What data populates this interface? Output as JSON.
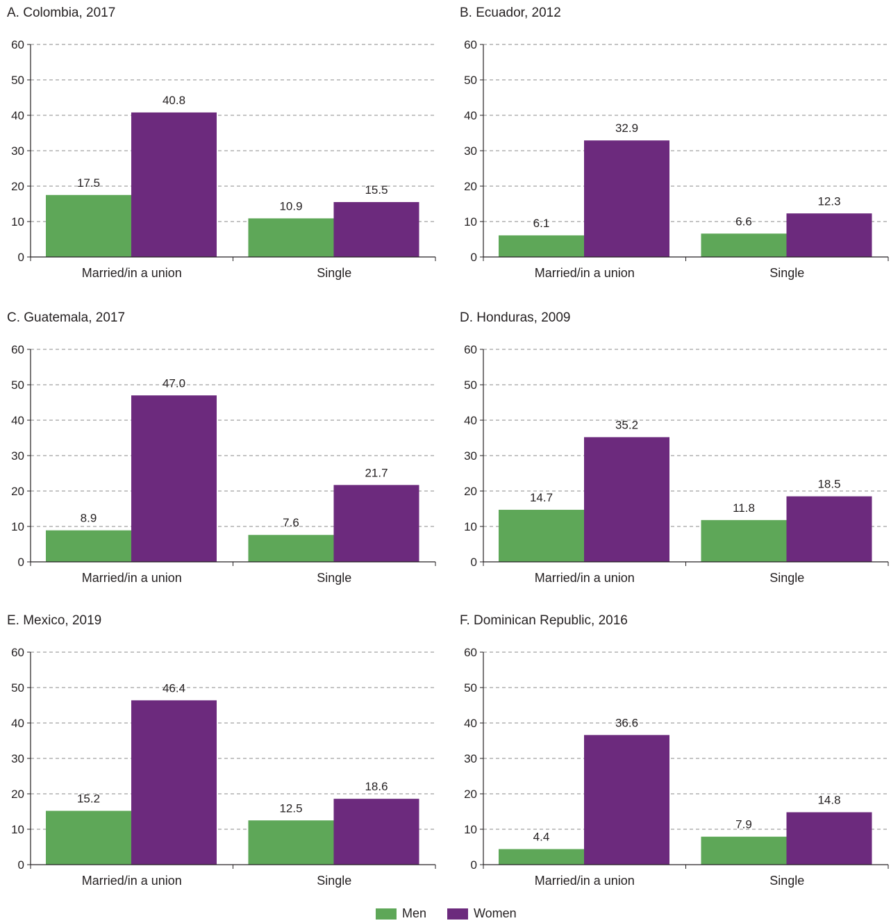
{
  "colors": {
    "men": "#5ea758",
    "women": "#6c2a7d",
    "axis": "#231f20",
    "grid": "#888888"
  },
  "legend": {
    "men_label": "Men",
    "women_label": "Women"
  },
  "chart_data": [
    {
      "type": "bar",
      "title": "A. Colombia, 2017",
      "categories": [
        "Married/in a union",
        "Single"
      ],
      "series": [
        {
          "name": "Men",
          "values": [
            17.5,
            10.9
          ]
        },
        {
          "name": "Women",
          "values": [
            40.8,
            15.5
          ]
        }
      ],
      "ylim": [
        0,
        60
      ],
      "yticks": [
        0,
        10,
        20,
        30,
        40,
        50,
        60
      ],
      "grid": true,
      "legend": "bottom"
    },
    {
      "type": "bar",
      "title": "B. Ecuador, 2012",
      "categories": [
        "Married/in a union",
        "Single"
      ],
      "series": [
        {
          "name": "Men",
          "values": [
            6.1,
            6.6
          ]
        },
        {
          "name": "Women",
          "values": [
            32.9,
            12.3
          ]
        }
      ],
      "ylim": [
        0,
        60
      ],
      "yticks": [
        0,
        10,
        20,
        30,
        40,
        50,
        60
      ],
      "grid": true,
      "legend": "bottom"
    },
    {
      "type": "bar",
      "title": "C. Guatemala, 2017",
      "categories": [
        "Married/in a union",
        "Single"
      ],
      "series": [
        {
          "name": "Men",
          "values": [
            8.9,
            7.6
          ]
        },
        {
          "name": "Women",
          "values": [
            47.0,
            21.7
          ]
        }
      ],
      "value_labels": [
        [
          "8.9",
          "7.6"
        ],
        [
          "47.0",
          "21.7"
        ]
      ],
      "ylim": [
        0,
        60
      ],
      "yticks": [
        0,
        10,
        20,
        30,
        40,
        50,
        60
      ],
      "grid": true,
      "legend": "bottom"
    },
    {
      "type": "bar",
      "title": "D. Honduras, 2009",
      "categories": [
        "Married/in a union",
        "Single"
      ],
      "series": [
        {
          "name": "Men",
          "values": [
            14.7,
            11.8
          ]
        },
        {
          "name": "Women",
          "values": [
            35.2,
            18.5
          ]
        }
      ],
      "ylim": [
        0,
        60
      ],
      "yticks": [
        0,
        10,
        20,
        30,
        40,
        50,
        60
      ],
      "grid": true,
      "legend": "bottom"
    },
    {
      "type": "bar",
      "title": "E. Mexico, 2019",
      "categories": [
        "Married/in a union",
        "Single"
      ],
      "series": [
        {
          "name": "Men",
          "values": [
            15.2,
            12.5
          ]
        },
        {
          "name": "Women",
          "values": [
            46.4,
            18.6
          ]
        }
      ],
      "ylim": [
        0,
        60
      ],
      "yticks": [
        0,
        10,
        20,
        30,
        40,
        50,
        60
      ],
      "grid": true,
      "legend": "bottom"
    },
    {
      "type": "bar",
      "title": "F. Dominican Republic, 2016",
      "categories": [
        "Married/in a union",
        "Single"
      ],
      "series": [
        {
          "name": "Men",
          "values": [
            4.4,
            7.9
          ]
        },
        {
          "name": "Women",
          "values": [
            36.6,
            14.8
          ]
        }
      ],
      "ylim": [
        0,
        60
      ],
      "yticks": [
        0,
        10,
        20,
        30,
        40,
        50,
        60
      ],
      "grid": true,
      "legend": "bottom"
    }
  ]
}
